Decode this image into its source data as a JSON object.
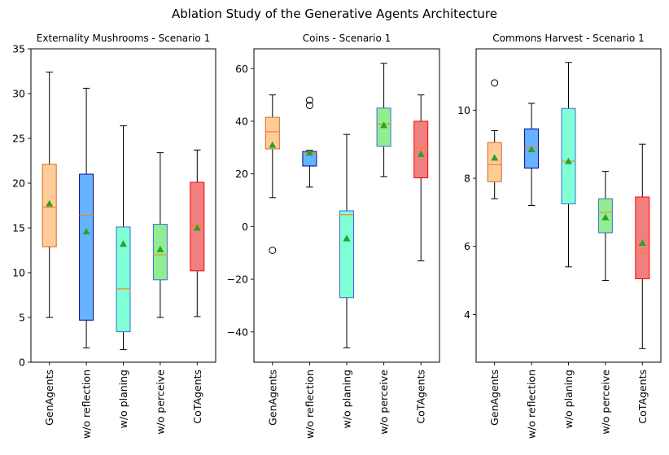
{
  "figure": {
    "suptitle": "Ablation Study of the Generative Agents Architecture"
  },
  "chart_data": [
    {
      "type": "box",
      "title": "Externality Mushrooms - Scenario 1",
      "categories": [
        "GenAgents",
        "w/o reflection",
        "w/o planing",
        "w/o perceive",
        "CoTAgents"
      ],
      "ylim": [
        0,
        35
      ],
      "yticks": [
        0,
        5,
        10,
        15,
        20,
        25,
        30,
        35
      ],
      "boxes": [
        {
          "whisker_low": 5.0,
          "q1": 12.9,
          "median": 17.3,
          "q3": 22.1,
          "whisker_high": 32.4,
          "mean": 17.7,
          "outliers": []
        },
        {
          "whisker_low": 1.6,
          "q1": 4.7,
          "median": 16.4,
          "q3": 21.0,
          "whisker_high": 30.6,
          "mean": 14.6,
          "outliers": []
        },
        {
          "whisker_low": 1.4,
          "q1": 3.4,
          "median": 8.2,
          "q3": 15.1,
          "whisker_high": 26.4,
          "mean": 13.2,
          "outliers": []
        },
        {
          "whisker_low": 5.0,
          "q1": 9.2,
          "median": 12.0,
          "q3": 15.4,
          "whisker_high": 23.4,
          "mean": 12.6,
          "outliers": []
        },
        {
          "whisker_low": 5.1,
          "q1": 10.2,
          "median": 15.3,
          "q3": 20.1,
          "whisker_high": 23.7,
          "mean": 15.0,
          "outliers": []
        }
      ]
    },
    {
      "type": "box",
      "title": "Coins - Scenario 1",
      "categories": [
        "GenAgents",
        "w/o reflection",
        "w/o planing",
        "w/o perceive",
        "CoTAgents"
      ],
      "ylim": [
        -51.5,
        67.5
      ],
      "yticks": [
        -40,
        -20,
        0,
        20,
        40,
        60
      ],
      "boxes": [
        {
          "whisker_low": 11,
          "q1": 29.5,
          "median": 36,
          "q3": 41.5,
          "whisker_high": 50,
          "mean": 31,
          "outliers": [
            -9
          ]
        },
        {
          "whisker_low": 15,
          "q1": 23,
          "median": 28,
          "q3": 28.5,
          "whisker_high": 29,
          "mean": 28,
          "outliers": [
            46,
            48
          ]
        },
        {
          "whisker_low": -46,
          "q1": -27,
          "median": 4.5,
          "q3": 6,
          "whisker_high": 35,
          "mean": -4.5,
          "outliers": []
        },
        {
          "whisker_low": 19,
          "q1": 30.5,
          "median": 39,
          "q3": 45,
          "whisker_high": 62,
          "mean": 38.5,
          "outliers": []
        },
        {
          "whisker_low": -13,
          "q1": 18.5,
          "median": 30,
          "q3": 40,
          "whisker_high": 50,
          "mean": 27.5,
          "outliers": []
        }
      ]
    },
    {
      "type": "box",
      "title": "Commons Harvest - Scenario 1",
      "categories": [
        "GenAgents",
        "w/o reflection",
        "w/o planing",
        "w/o perceive",
        "CoTAgents"
      ],
      "ylim": [
        2.6,
        11.8
      ],
      "yticks": [
        4,
        6,
        8,
        10
      ],
      "boxes": [
        {
          "whisker_low": 7.4,
          "q1": 7.9,
          "median": 8.4,
          "q3": 9.05,
          "whisker_high": 9.4,
          "mean": 8.6,
          "outliers": [
            10.8
          ]
        },
        {
          "whisker_low": 7.2,
          "q1": 8.3,
          "median": 8.9,
          "q3": 9.45,
          "whisker_high": 10.2,
          "mean": 8.85,
          "outliers": []
        },
        {
          "whisker_low": 5.4,
          "q1": 7.25,
          "median": 8.5,
          "q3": 10.05,
          "whisker_high": 11.4,
          "mean": 8.5,
          "outliers": []
        },
        {
          "whisker_low": 5.0,
          "q1": 6.4,
          "median": 7.0,
          "q3": 7.4,
          "whisker_high": 8.2,
          "mean": 6.85,
          "outliers": []
        },
        {
          "whisker_low": 3.0,
          "q1": 5.05,
          "median": 5.8,
          "q3": 7.45,
          "whisker_high": 9.0,
          "mean": 6.1,
          "outliers": []
        }
      ]
    }
  ],
  "style": {
    "box_fills": [
      "#ffcc99",
      "#66b3ff",
      "#7fffd4",
      "#90ee90",
      "#f08080"
    ],
    "box_edges": [
      "#d2691e",
      "#00008b",
      "#4169e1",
      "#4169e1",
      "#ff0000"
    ],
    "median_color": "#ff7f0e",
    "mean_color": "#2ca02c"
  }
}
